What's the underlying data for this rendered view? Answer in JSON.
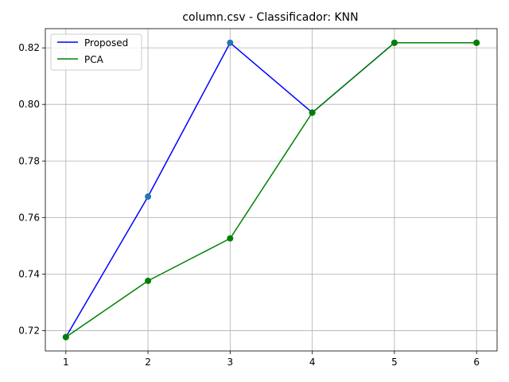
{
  "chart_data": {
    "type": "line",
    "title": "column.csv - Classificador: KNN",
    "xlabel": "",
    "ylabel": "",
    "x": [
      1,
      2,
      3,
      4,
      5,
      6
    ],
    "xticks": [
      1,
      2,
      3,
      4,
      5,
      6
    ],
    "yticks": [
      0.72,
      0.74,
      0.76,
      0.78,
      0.8,
      0.82
    ],
    "ytick_labels": [
      "0.72",
      "0.74",
      "0.76",
      "0.78",
      "0.80",
      "0.82"
    ],
    "xlim": [
      0.75,
      6.25
    ],
    "ylim": [
      0.7128,
      0.8268
    ],
    "grid": true,
    "legend_position": "upper-left",
    "series": [
      {
        "name": "Proposed",
        "color": "#0000ff",
        "marker_color": "#1f77b4",
        "values": [
          0.7177,
          0.7674,
          0.8218,
          0.7971,
          0.8218,
          0.8218
        ]
      },
      {
        "name": "PCA",
        "color": "#008000",
        "marker_color": "#008000",
        "values": [
          0.7177,
          0.7376,
          0.7526,
          0.7971,
          0.8218,
          0.8218
        ]
      }
    ]
  }
}
